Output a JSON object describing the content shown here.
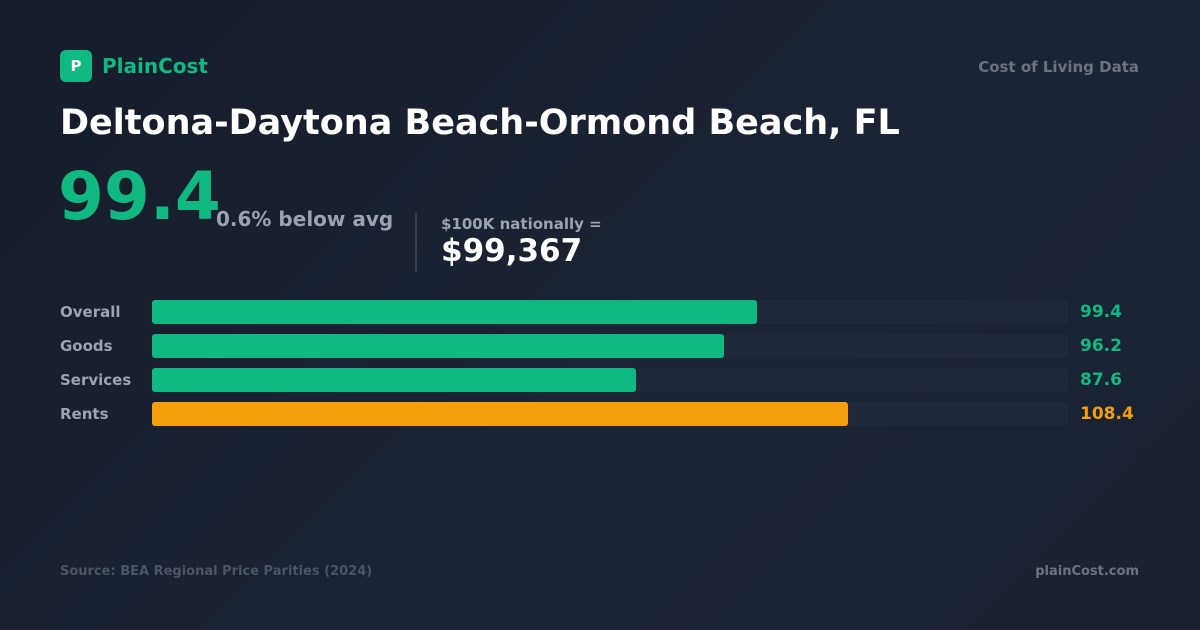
{
  "brand": {
    "mark": "P",
    "name": "PlainCost"
  },
  "tagline": "Cost of Living Data",
  "title": "Deltona-Daytona Beach-Ormond Beach, FL",
  "summary": {
    "value": "99.4",
    "delta": "0.6% below avg",
    "national_label": "$100K nationally =",
    "national_value": "$99,367"
  },
  "colors": {
    "accent": "#10b981",
    "above_avg": "#f59e0b",
    "track": "#1f2838"
  },
  "chart_data": {
    "type": "bar",
    "orientation": "horizontal",
    "categories": [
      "Overall",
      "Goods",
      "Services",
      "Rents"
    ],
    "values": [
      99.4,
      96.2,
      87.6,
      108.4
    ],
    "value_labels": [
      "99.4",
      "96.2",
      "87.6",
      "108.4"
    ],
    "bar_colors": [
      "#10b981",
      "#10b981",
      "#10b981",
      "#f59e0b"
    ],
    "xlim": [
      40,
      130
    ]
  },
  "footer": {
    "source": "Source: BEA Regional Price Parities (2024)",
    "site": "plainCost.com"
  }
}
